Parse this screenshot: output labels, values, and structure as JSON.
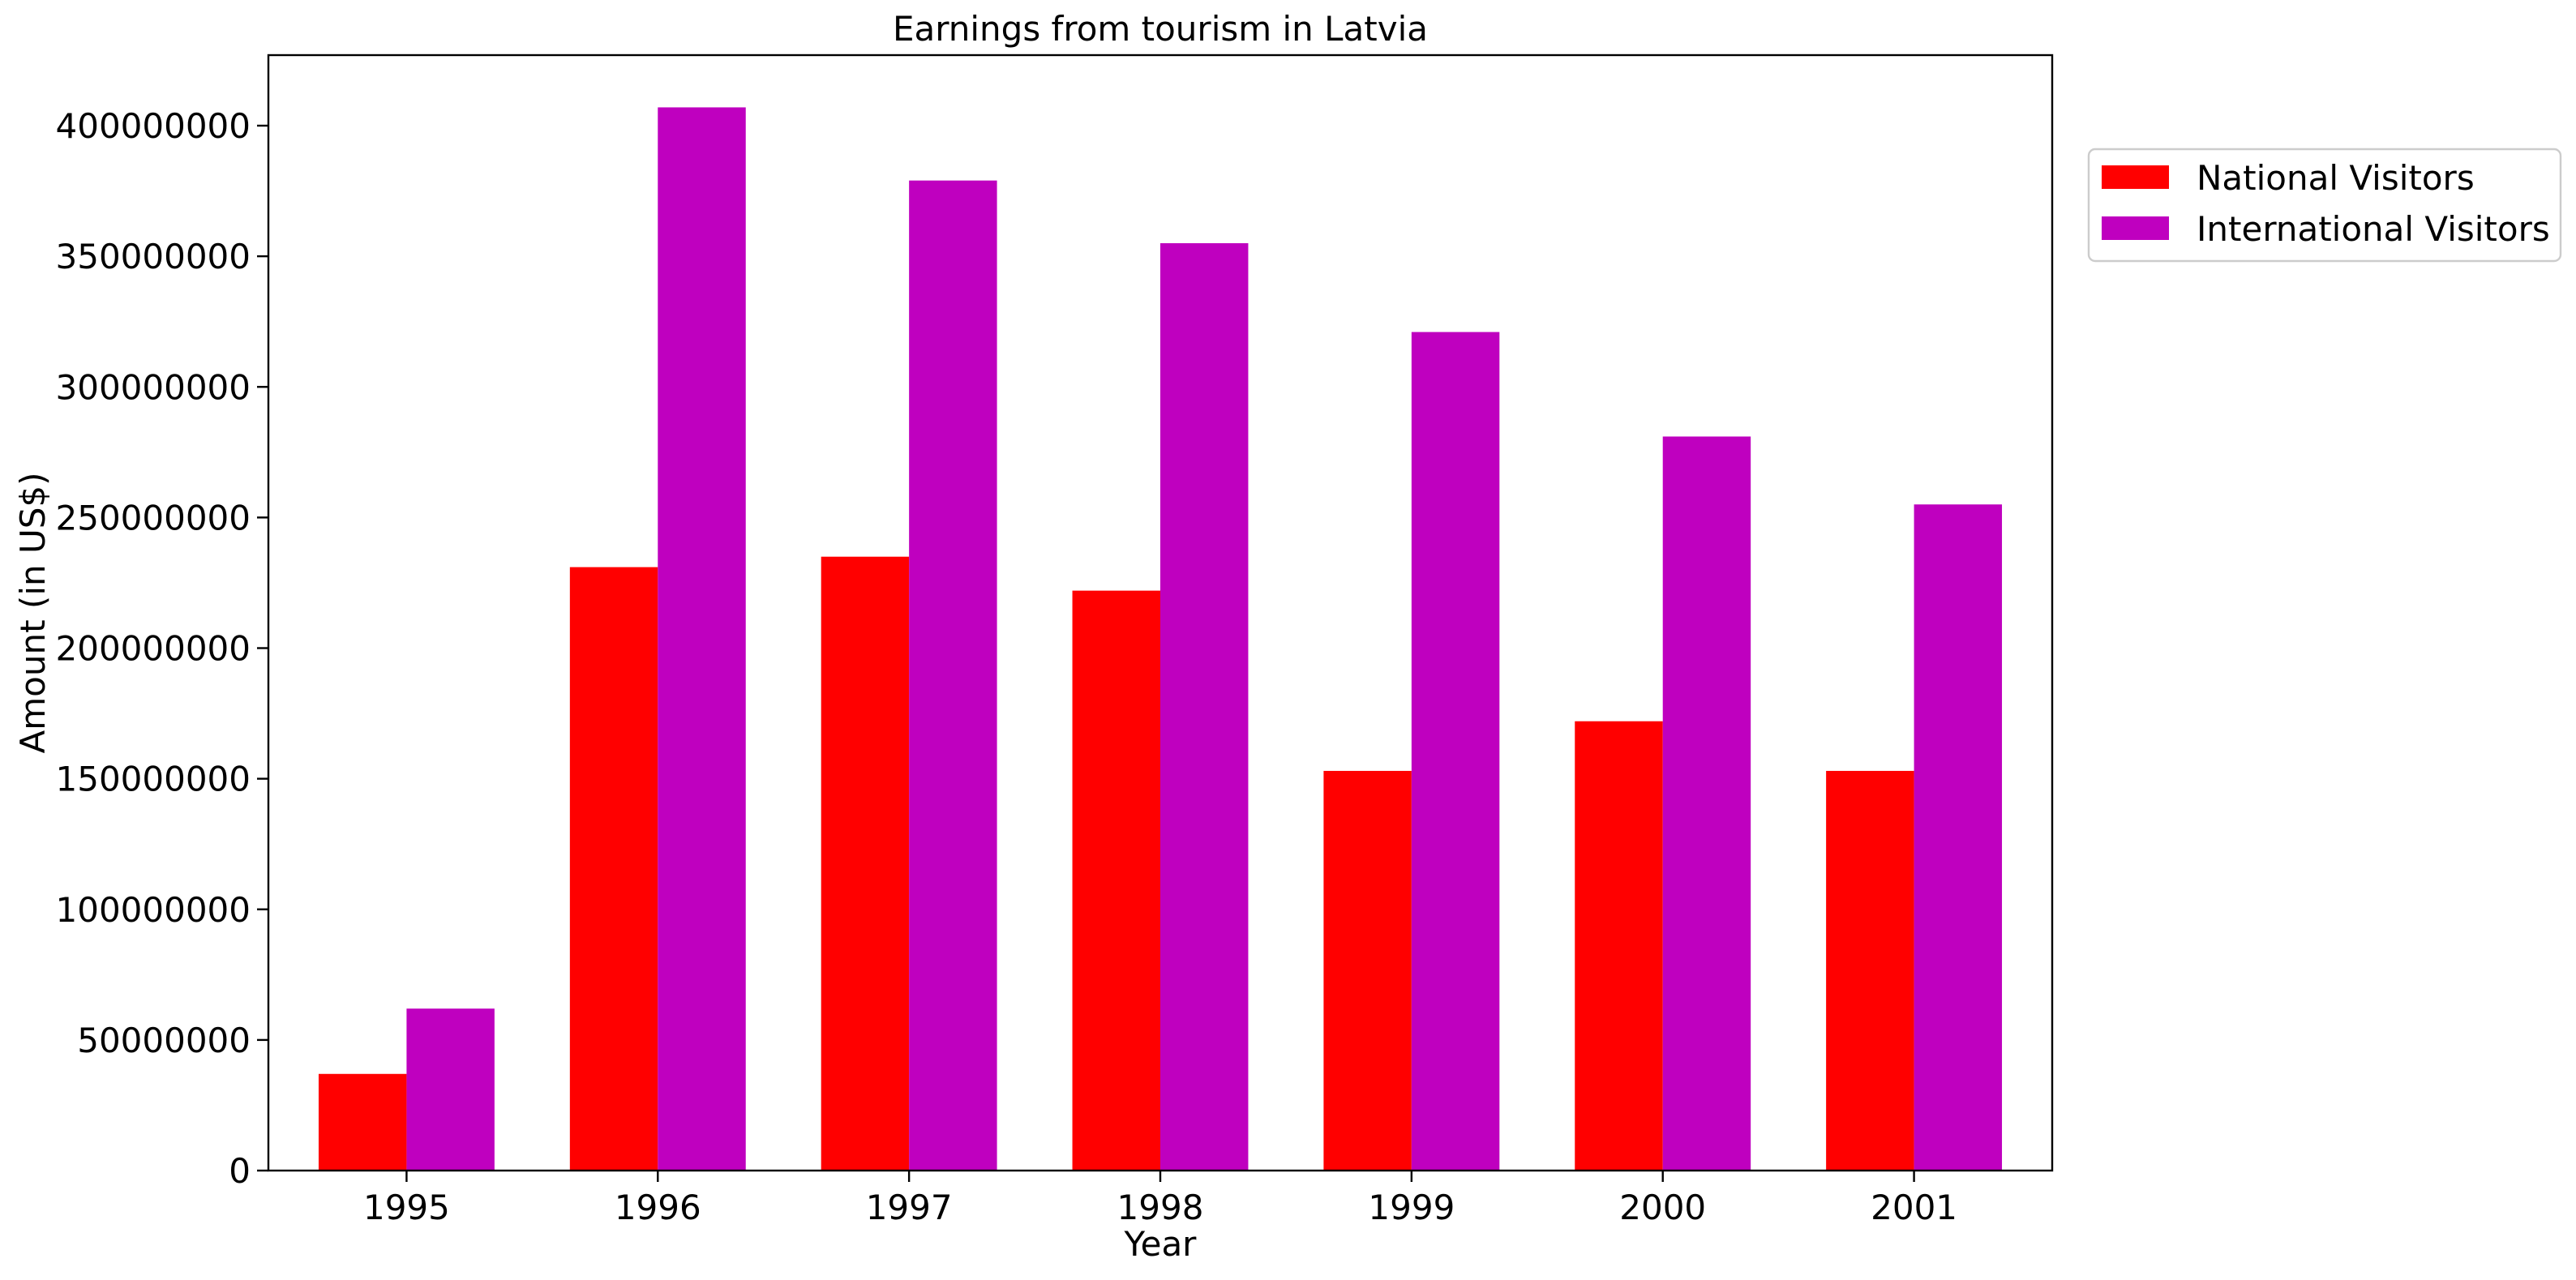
{
  "chart_data": {
    "type": "bar",
    "title": "Earnings from tourism in Latvia",
    "xlabel": "Year",
    "ylabel": "Amount (in US$)",
    "categories": [
      "1995",
      "1996",
      "1997",
      "1998",
      "1999",
      "2000",
      "2001"
    ],
    "series": [
      {
        "name": "National Visitors",
        "color": "#ff0000",
        "values": [
          37000000,
          231000000,
          235000000,
          222000000,
          153000000,
          172000000,
          153000000
        ]
      },
      {
        "name": "International Visitors",
        "color": "#bf00bf",
        "values": [
          62000000,
          407000000,
          379000000,
          355000000,
          321000000,
          281000000,
          255000000
        ]
      }
    ],
    "ylim": [
      0,
      427000000
    ],
    "yticks": [
      0,
      50000000,
      100000000,
      150000000,
      200000000,
      250000000,
      300000000,
      350000000,
      400000000
    ],
    "ytick_labels": [
      "0",
      "50000000",
      "100000000",
      "150000000",
      "200000000",
      "250000000",
      "300000000",
      "350000000",
      "400000000"
    ],
    "grid": false,
    "legend_position": "outside-top-right"
  }
}
